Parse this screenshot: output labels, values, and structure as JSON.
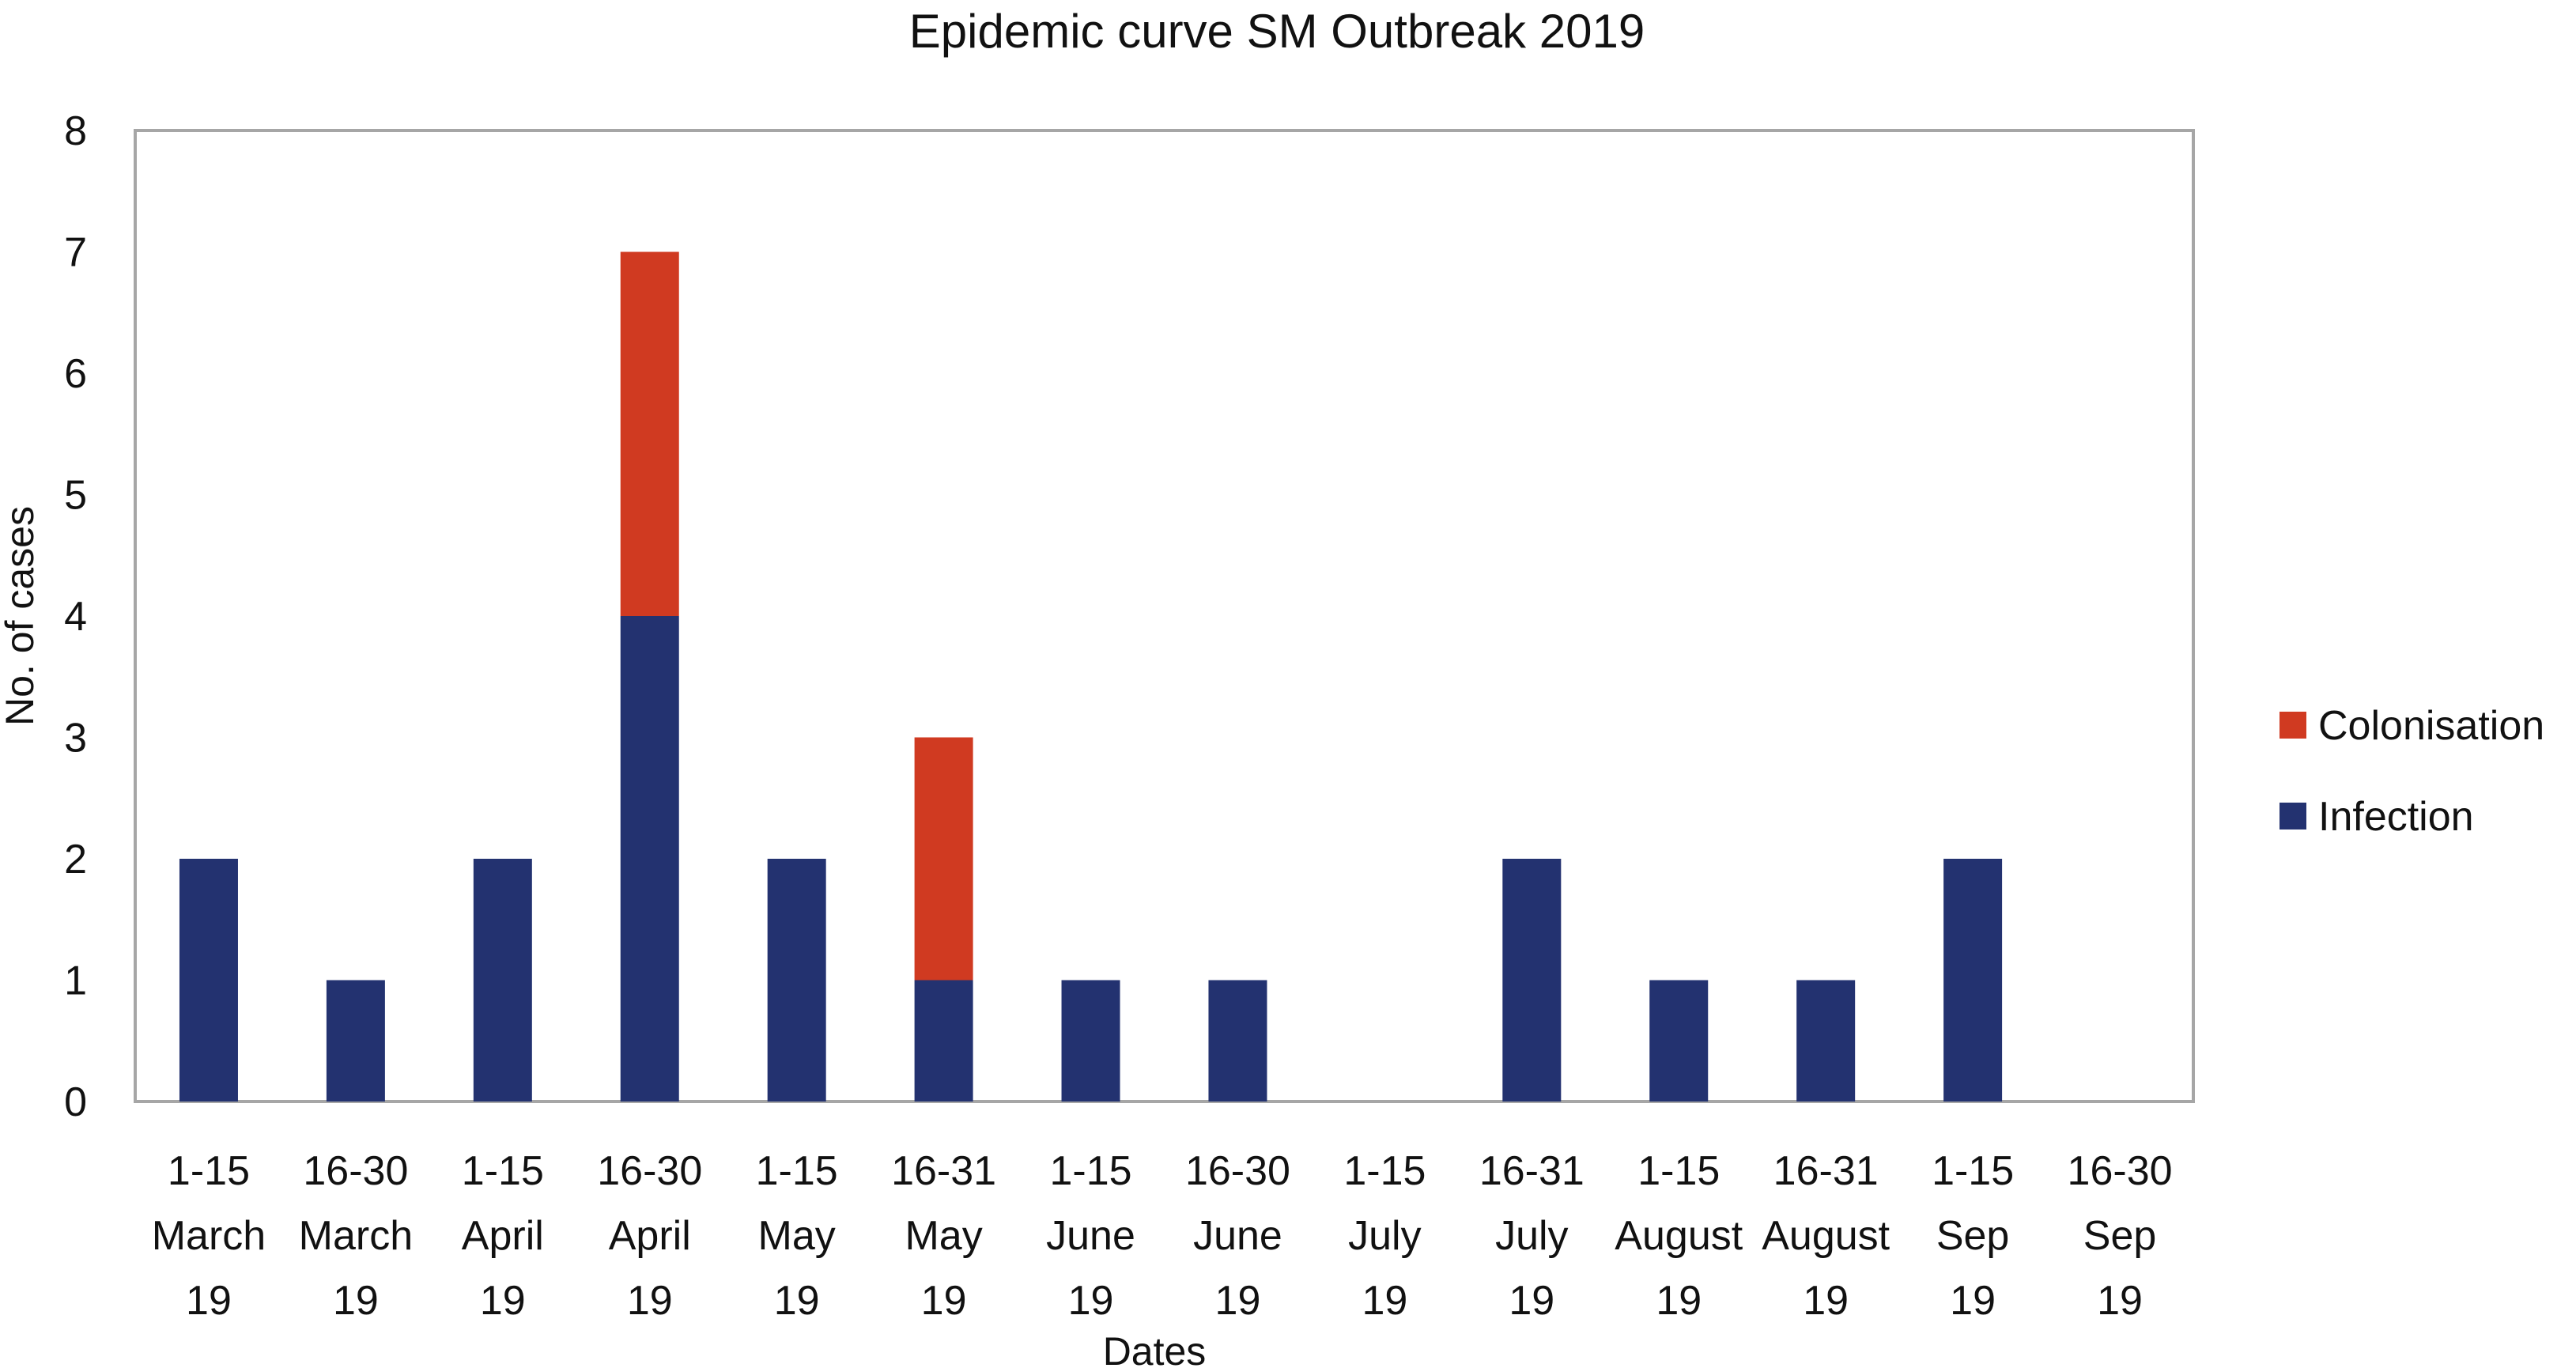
{
  "chart_data": {
    "type": "bar",
    "stacked": true,
    "title": "Epidemic curve SM Outbreak 2019",
    "xlabel": "Dates",
    "ylabel": "No. of cases",
    "ylim": [
      0,
      8
    ],
    "yticks": [
      "0",
      "1",
      "2",
      "3",
      "4",
      "5",
      "6",
      "7",
      "8"
    ],
    "grid": false,
    "legend_position": "right",
    "categories": [
      [
        "1-15",
        "March",
        "19"
      ],
      [
        "16-30",
        "March",
        "19"
      ],
      [
        "1-15",
        "April",
        "19"
      ],
      [
        "16-30",
        "April",
        "19"
      ],
      [
        "1-15",
        "May",
        "19"
      ],
      [
        "16-31",
        "May",
        "19"
      ],
      [
        "1-15",
        "June",
        "19"
      ],
      [
        "16-30",
        "June",
        "19"
      ],
      [
        "1-15",
        "July",
        "19"
      ],
      [
        "16-31",
        "July",
        "19"
      ],
      [
        "1-15",
        "August",
        "19"
      ],
      [
        "16-31",
        "August",
        "19"
      ],
      [
        "1-15",
        "Sep",
        "19"
      ],
      [
        "16-30",
        "Sep",
        "19"
      ]
    ],
    "series": [
      {
        "name": "Infection",
        "color": "#233270",
        "values": [
          2,
          1,
          2,
          4,
          2,
          1,
          1,
          1,
          0,
          2,
          1,
          1,
          2,
          0
        ]
      },
      {
        "name": "Colonisation",
        "color": "#D03A21",
        "values": [
          0,
          0,
          0,
          3,
          0,
          2,
          0,
          0,
          0,
          0,
          0,
          0,
          0,
          0
        ]
      }
    ],
    "legend": [
      "Colonisation",
      "Infection"
    ],
    "plot_border_color": "#A6A6A6"
  }
}
